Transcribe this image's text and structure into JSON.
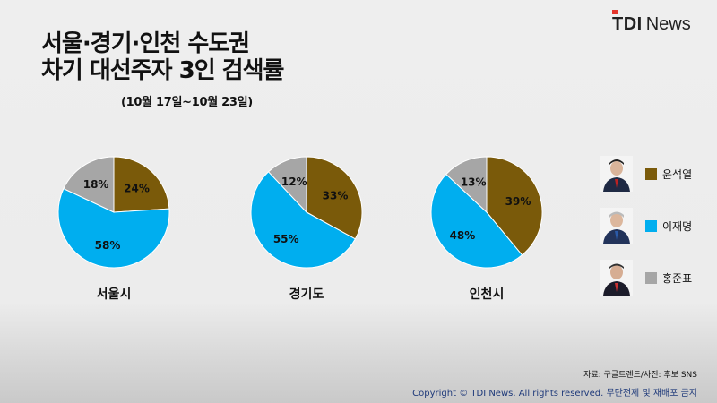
{
  "brand": {
    "logo_tdi": "TDI",
    "logo_news": "News"
  },
  "header": {
    "title_line1": "서울·경기·인천 수도권",
    "title_line2": "차기 대선주자 3인 검색률",
    "subtitle": "(10월 17일~10월 23일)"
  },
  "chart_data": [
    {
      "type": "pie",
      "title": "서울시",
      "labels": [
        "윤석열",
        "이재명",
        "홍준표"
      ],
      "values": [
        24,
        58,
        18
      ],
      "colors": [
        "#7a5a0a",
        "#00aeef",
        "#a6a6a6"
      ]
    },
    {
      "type": "pie",
      "title": "경기도",
      "labels": [
        "윤석열",
        "이재명",
        "홍준표"
      ],
      "values": [
        33,
        55,
        12
      ],
      "colors": [
        "#7a5a0a",
        "#00aeef",
        "#a6a6a6"
      ]
    },
    {
      "type": "pie",
      "title": "인천시",
      "labels": [
        "윤석열",
        "이재명",
        "홍준표"
      ],
      "values": [
        39,
        48,
        13
      ],
      "colors": [
        "#7a5a0a",
        "#00aeef",
        "#a6a6a6"
      ]
    }
  ],
  "legend": [
    {
      "name": "윤석열",
      "color": "#7a5a0a"
    },
    {
      "name": "이재명",
      "color": "#00aeef"
    },
    {
      "name": "홍준표",
      "color": "#a6a6a6"
    }
  ],
  "footer": {
    "source": "자료: 구글트렌드/사진: 후보 SNS",
    "copyright": "Copyright © TDI News. All rights reserved. 무단전제 및 재배포 금지"
  }
}
